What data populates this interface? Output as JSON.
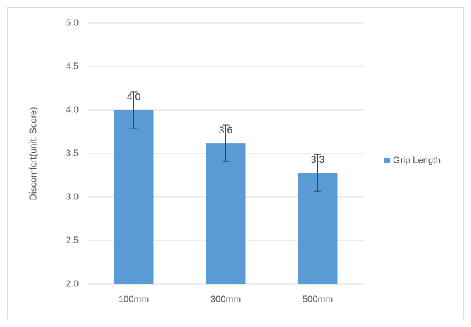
{
  "chart_data": {
    "type": "bar",
    "y_label": "Discomfort(unit: Score)",
    "categories": [
      "100mm",
      "300mm",
      "500mm"
    ],
    "series": [
      {
        "name": "Grip Length",
        "color": "#5b9bd5",
        "values": [
          4.0,
          3.62,
          3.28
        ],
        "value_labels": [
          "4.0",
          "3.6",
          "3.3"
        ],
        "errors": [
          0.21,
          0.21,
          0.21
        ]
      }
    ],
    "ylim": [
      2,
      5
    ],
    "yticks": [
      {
        "value": 2,
        "label": "2.0"
      },
      {
        "value": 2.5,
        "label": "2.5"
      },
      {
        "value": 3,
        "label": "3.0"
      },
      {
        "value": 3.5,
        "label": "3.5"
      },
      {
        "value": 4,
        "label": "4.0"
      },
      {
        "value": 4.5,
        "label": "4.5"
      },
      {
        "value": 5,
        "label": "5.0"
      }
    ],
    "grid": true,
    "legend": "right"
  }
}
